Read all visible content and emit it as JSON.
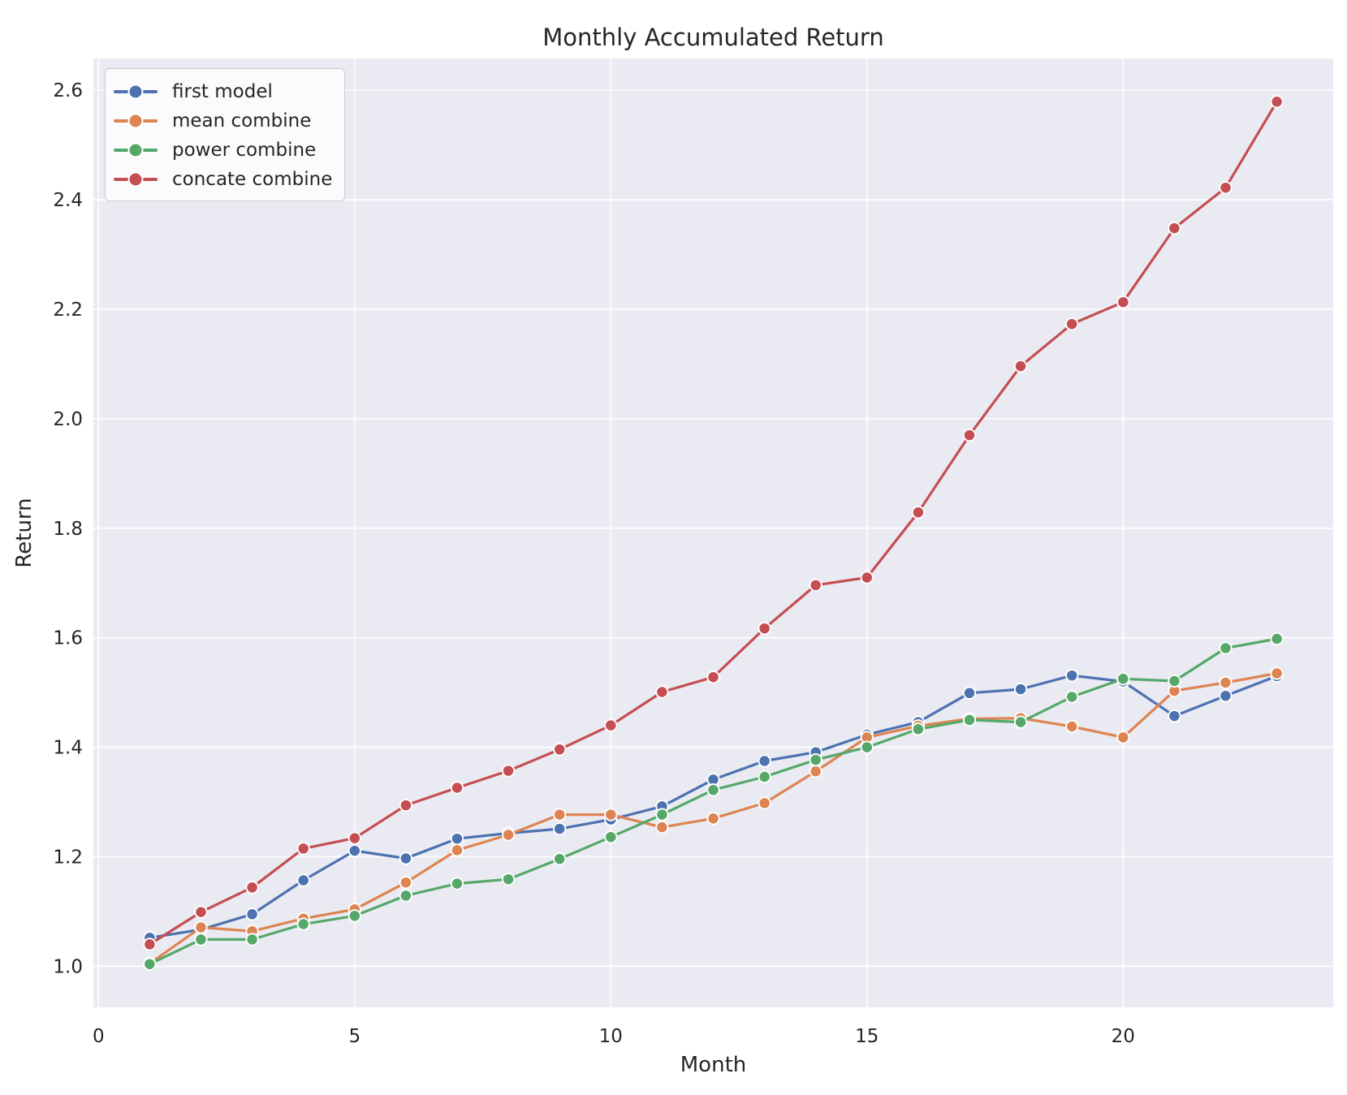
{
  "title": "Monthly Accumulated Return",
  "chart_data": {
    "type": "line",
    "title": "Monthly Accumulated Return",
    "xlabel": "Month",
    "ylabel": "Return",
    "x": [
      1,
      2,
      3,
      4,
      5,
      6,
      7,
      8,
      9,
      10,
      11,
      12,
      13,
      14,
      15,
      16,
      17,
      18,
      19,
      20,
      21,
      22,
      23
    ],
    "series": [
      {
        "name": "first model",
        "color": "#4C72B0",
        "values": [
          1.052,
          1.067,
          1.095,
          1.157,
          1.211,
          1.197,
          1.233,
          1.243,
          1.251,
          1.268,
          1.292,
          1.341,
          1.375,
          1.391,
          1.423,
          1.446,
          1.499,
          1.506,
          1.531,
          1.52,
          1.457,
          1.494,
          1.53
        ]
      },
      {
        "name": "mean combine",
        "color": "#DD8452",
        "values": [
          1.005,
          1.071,
          1.064,
          1.087,
          1.104,
          1.153,
          1.212,
          1.24,
          1.277,
          1.277,
          1.254,
          1.27,
          1.298,
          1.356,
          1.418,
          1.439,
          1.452,
          1.453,
          1.438,
          1.418,
          1.503,
          1.518,
          1.535
        ]
      },
      {
        "name": "power combine",
        "color": "#55A868",
        "values": [
          1.004,
          1.049,
          1.049,
          1.077,
          1.092,
          1.129,
          1.151,
          1.159,
          1.196,
          1.236,
          1.277,
          1.322,
          1.346,
          1.377,
          1.4,
          1.433,
          1.45,
          1.446,
          1.492,
          1.525,
          1.521,
          1.581,
          1.598
        ]
      },
      {
        "name": "concate combine",
        "color": "#C44E52",
        "values": [
          1.04,
          1.099,
          1.144,
          1.215,
          1.234,
          1.294,
          1.326,
          1.357,
          1.396,
          1.44,
          1.501,
          1.528,
          1.617,
          1.696,
          1.71,
          1.829,
          1.97,
          2.096,
          2.173,
          2.213,
          2.348,
          2.422,
          2.579
        ]
      }
    ],
    "xticks": [
      0,
      5,
      10,
      15,
      20
    ],
    "yticks": [
      1.0,
      1.2,
      1.4,
      1.6,
      1.8,
      2.0,
      2.2,
      2.4,
      2.6
    ],
    "xlim": [
      -0.1,
      24.1
    ],
    "ylim": [
      0.925,
      2.658
    ],
    "grid": true,
    "legend_position": "upper left",
    "plot_bg_color": "#EAEAF2",
    "grid_color": "#FFFFFF",
    "text_color": "#262626"
  }
}
